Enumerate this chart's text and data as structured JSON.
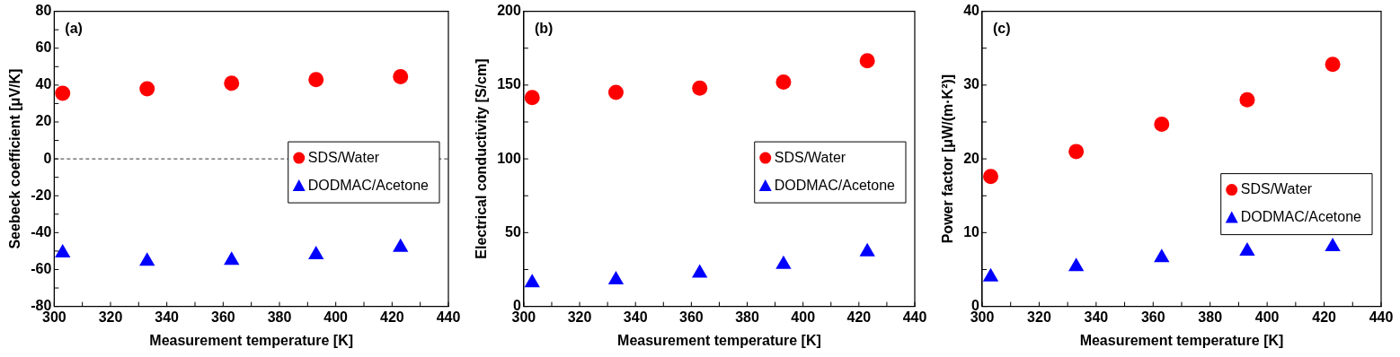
{
  "chart_data": [
    {
      "type": "scatter",
      "xlabel": "Measurement temperature [K]",
      "ylabel": "Seebeck coefficient [μV/K]",
      "annotations": [
        "(a)"
      ],
      "x": [
        303,
        333,
        363,
        393,
        423
      ],
      "xlim": [
        300,
        440
      ],
      "xticks": [
        300,
        {
          "value": 310,
          "label": null
        },
        320,
        {
          "value": 330,
          "label": null
        },
        340,
        {
          "value": 350,
          "label": null
        },
        360,
        {
          "value": 370,
          "label": null
        },
        380,
        {
          "value": 390,
          "label": null
        },
        400,
        {
          "value": 410,
          "label": null
        },
        420,
        {
          "value": 430,
          "label": null
        },
        440
      ],
      "ylim": [
        -80,
        80
      ],
      "yticks": [
        -80,
        {
          "value": -70,
          "label": null
        },
        -60,
        {
          "value": -50,
          "label": null
        },
        -40,
        {
          "value": -30,
          "label": null
        },
        -20,
        {
          "value": -10,
          "label": null
        },
        0,
        {
          "value": 10,
          "label": null
        },
        20,
        {
          "value": 30,
          "label": null
        },
        40,
        {
          "value": 50,
          "label": null
        },
        60,
        {
          "value": 70,
          "label": null
        },
        80
      ],
      "ref_lines": [
        {
          "axis": "y",
          "value": 0,
          "color": "#000000",
          "line_style": "dashed"
        }
      ],
      "legend": "right",
      "grid": false,
      "series": [
        {
          "name": "SDS/Water",
          "color": "#ff0000",
          "marker": "circle",
          "values": [
            35.5,
            38,
            41,
            43,
            44.5
          ]
        },
        {
          "name": "DODMAC/Acetone",
          "color": "#0000ff",
          "marker": "triangle",
          "values": [
            -51,
            -55.5,
            -55,
            -52,
            -48
          ]
        }
      ]
    },
    {
      "type": "scatter",
      "xlabel": "Measurement temperature [K]",
      "ylabel": "Electrical conductivity [S/cm]",
      "annotations": [
        "(b)"
      ],
      "x": [
        303,
        333,
        363,
        393,
        423
      ],
      "xlim": [
        300,
        440
      ],
      "xticks": [
        300,
        {
          "value": 310,
          "label": null
        },
        320,
        {
          "value": 330,
          "label": null
        },
        340,
        {
          "value": 350,
          "label": null
        },
        360,
        {
          "value": 370,
          "label": null
        },
        380,
        {
          "value": 390,
          "label": null
        },
        400,
        {
          "value": 410,
          "label": null
        },
        420,
        {
          "value": 430,
          "label": null
        },
        440
      ],
      "ylim": [
        0,
        200
      ],
      "yticks": [
        0,
        {
          "value": 25,
          "label": null
        },
        50,
        {
          "value": 75,
          "label": null
        },
        100,
        {
          "value": 125,
          "label": null
        },
        150,
        {
          "value": 175,
          "label": null
        },
        200
      ],
      "legend": "right",
      "grid": false,
      "series": [
        {
          "name": "SDS/Water",
          "color": "#ff0000",
          "marker": "circle",
          "values": [
            141.5,
            145,
            148,
            152,
            166.5
          ]
        },
        {
          "name": "DODMAC/Acetone",
          "color": "#0000ff",
          "marker": "triangle",
          "values": [
            16,
            18,
            22.5,
            28.5,
            37
          ]
        }
      ]
    },
    {
      "type": "scatter",
      "xlabel": "Measurement temperature [K]",
      "ylabel": "Power factor [μW/(m·K²)]",
      "annotations": [
        "(c)"
      ],
      "x": [
        303,
        333,
        363,
        393,
        423
      ],
      "xlim": [
        300,
        440
      ],
      "xticks": [
        300,
        {
          "value": 310,
          "label": null
        },
        320,
        {
          "value": 330,
          "label": null
        },
        340,
        {
          "value": 350,
          "label": null
        },
        360,
        {
          "value": 370,
          "label": null
        },
        380,
        {
          "value": 390,
          "label": null
        },
        400,
        {
          "value": 410,
          "label": null
        },
        420,
        {
          "value": 430,
          "label": null
        },
        440
      ],
      "ylim": [
        0,
        40
      ],
      "yticks": [
        0,
        {
          "value": 5,
          "label": null
        },
        10,
        {
          "value": 15,
          "label": null
        },
        20,
        {
          "value": 25,
          "label": null
        },
        30,
        {
          "value": 35,
          "label": null
        },
        40
      ],
      "legend": "bottom right",
      "grid": false,
      "series": [
        {
          "name": "SDS/Water",
          "color": "#ff0000",
          "marker": "circle",
          "values": [
            17.6,
            21,
            24.7,
            28,
            32.8
          ]
        },
        {
          "name": "DODMAC/Acetone",
          "color": "#0000ff",
          "marker": "triangle",
          "values": [
            4,
            5.4,
            6.6,
            7.5,
            8.1
          ]
        }
      ]
    }
  ]
}
